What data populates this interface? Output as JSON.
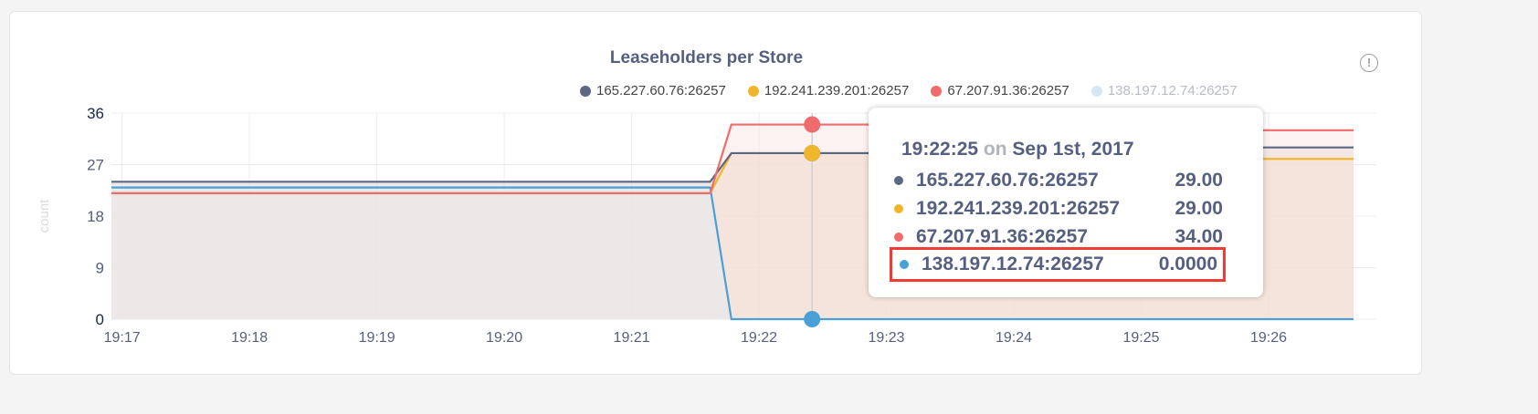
{
  "title": "Leaseholders per Store",
  "info_icon": "info-circle-icon",
  "chart_data": {
    "type": "area",
    "title": "Leaseholders per Store",
    "ylabel": "count",
    "xlabel": "",
    "ylim": [
      0,
      36
    ],
    "yticks": [
      "0",
      "9",
      "18",
      "27",
      "36"
    ],
    "xlim": [
      "19:16:55",
      "19:26:40"
    ],
    "xticks": [
      "19:17",
      "19:18",
      "19:19",
      "19:20",
      "19:21",
      "19:22",
      "19:23",
      "19:24",
      "19:25",
      "19:26"
    ],
    "grid": true,
    "legend_position": "top",
    "series": [
      {
        "name": "165.227.60.76:26257",
        "color": "#5b6784",
        "dimmed": false,
        "points": [
          [
            "19:16:55",
            24
          ],
          [
            "19:21:37",
            24
          ],
          [
            "19:21:47",
            29
          ],
          [
            "19:24:30",
            29
          ],
          [
            "19:24:40",
            30
          ],
          [
            "19:26:40",
            30
          ]
        ]
      },
      {
        "name": "192.241.239.201:26257",
        "color": "#efb62b",
        "dimmed": false,
        "points": [
          [
            "19:16:55",
            22
          ],
          [
            "19:21:37",
            22
          ],
          [
            "19:21:47",
            29
          ],
          [
            "19:24:30",
            29
          ],
          [
            "19:24:40",
            28
          ],
          [
            "19:26:40",
            28
          ]
        ]
      },
      {
        "name": "67.207.91.36:26257",
        "color": "#f06b6b",
        "dimmed": false,
        "points": [
          [
            "19:16:55",
            22
          ],
          [
            "19:21:37",
            22
          ],
          [
            "19:21:47",
            34
          ],
          [
            "19:24:30",
            34
          ],
          [
            "19:24:40",
            33
          ],
          [
            "19:26:40",
            33
          ]
        ]
      },
      {
        "name": "138.197.12.74:26257",
        "color": "#4a9fd6",
        "dimmed": true,
        "points": [
          [
            "19:16:55",
            23
          ],
          [
            "19:21:37",
            23
          ],
          [
            "19:21:47",
            0
          ],
          [
            "19:26:40",
            0
          ]
        ]
      }
    ],
    "hover_time": "19:22:25"
  },
  "tooltip": {
    "time": "19:22:25",
    "on": "on",
    "date": "Sep 1st, 2017",
    "rows": [
      {
        "name": "165.227.60.76:26257",
        "value": "29.00",
        "color": "#5b6784"
      },
      {
        "name": "192.241.239.201:26257",
        "value": "29.00",
        "color": "#efb62b"
      },
      {
        "name": "67.207.91.36:26257",
        "value": "34.00",
        "color": "#f06b6b"
      },
      {
        "name": "138.197.12.74:26257",
        "value": "0.0000",
        "color": "#4a9fd6",
        "highlighted": true
      }
    ]
  }
}
